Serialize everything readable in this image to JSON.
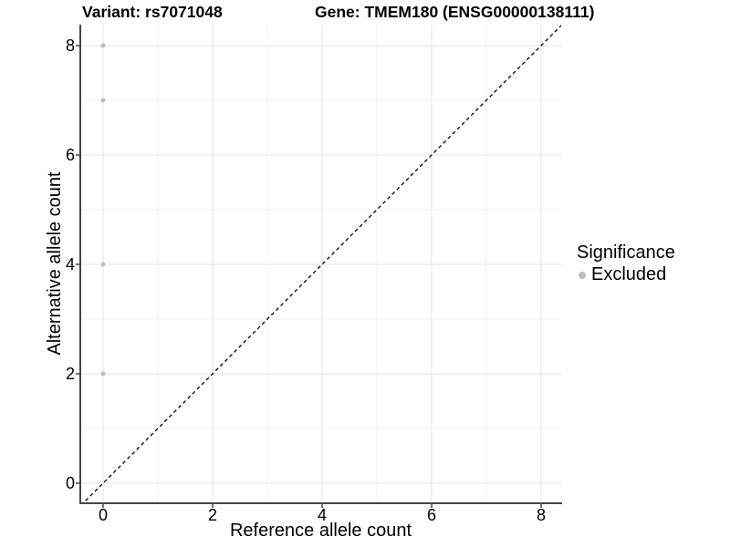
{
  "legend": {
    "title": "Significance",
    "items": [
      {
        "label": "Excluded",
        "color": "#bcbcbc"
      }
    ]
  },
  "chart_data": {
    "type": "scatter",
    "title_left": "Variant: rs7071048",
    "title_right": "Gene: TMEM180 (ENSG00000138111)",
    "xlabel": "Reference allele count",
    "ylabel": "Alternative allele count",
    "xlim": [
      0,
      8
    ],
    "ylim": [
      0,
      8
    ],
    "xticks": [
      0,
      2,
      4,
      6,
      8
    ],
    "yticks": [
      0,
      2,
      4,
      6,
      8
    ],
    "x_minor": [
      1,
      3,
      5,
      7
    ],
    "y_minor": [
      1,
      3,
      5,
      7
    ],
    "grid": "major and minor gridlines on white background",
    "legend_position": "right",
    "series": [
      {
        "name": "Excluded",
        "color": "#bcbcbc",
        "marker": "circle",
        "points": [
          {
            "x": 0,
            "y": 8
          },
          {
            "x": 0,
            "y": 7
          },
          {
            "x": 0,
            "y": 4
          },
          {
            "x": 0,
            "y": 2
          }
        ]
      }
    ],
    "reference_line": {
      "slope": 1,
      "intercept": 0,
      "style": "dashed",
      "color": "#000000"
    },
    "colors": {
      "grid_major": "#e3e3e3",
      "grid_minor": "#f1f1f1",
      "axis": "#464646",
      "background": "#ffffff",
      "text": "#000000"
    }
  }
}
